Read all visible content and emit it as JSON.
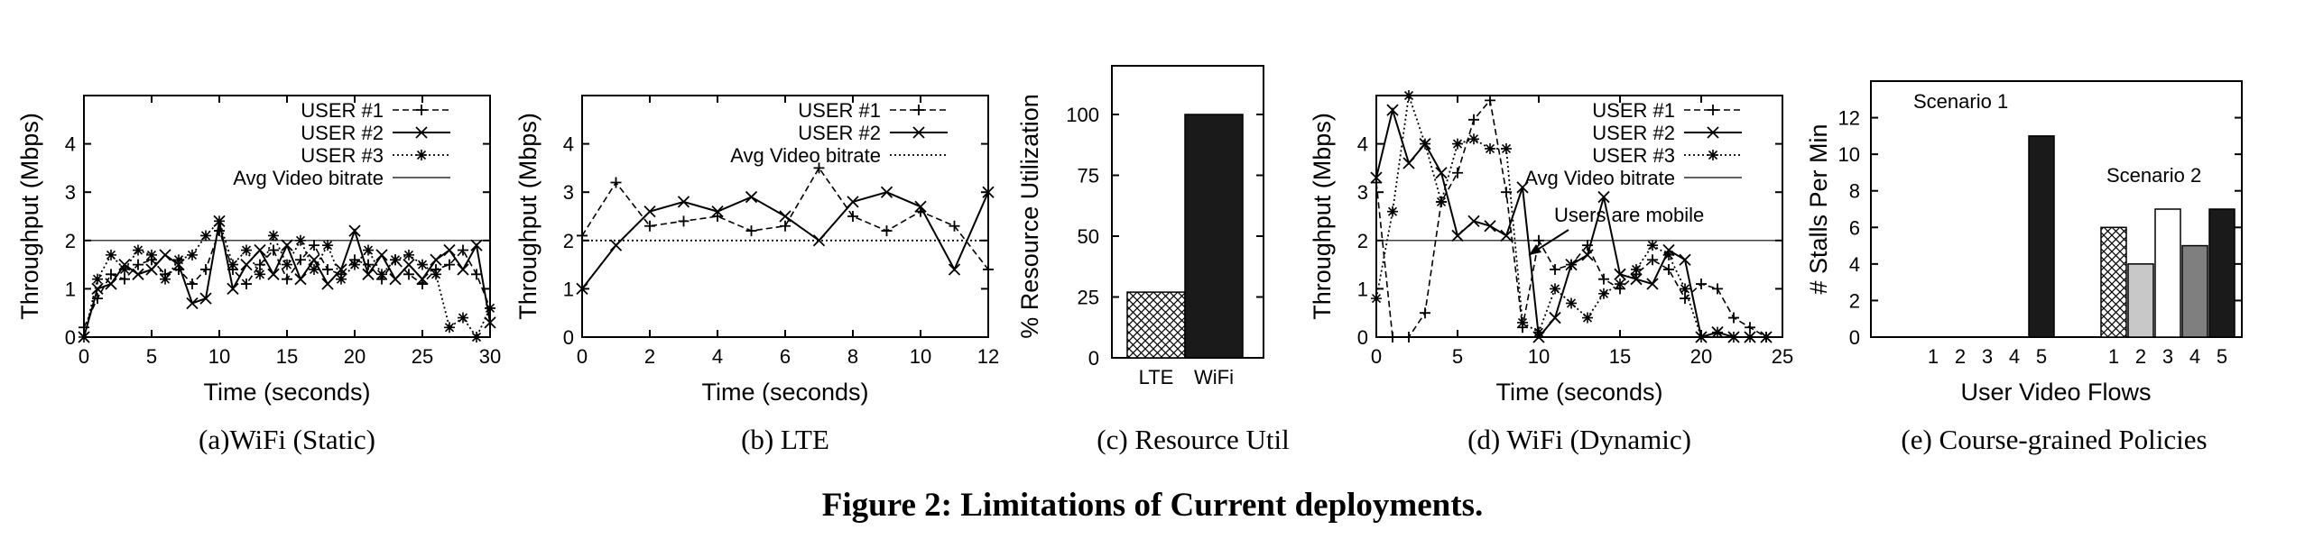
{
  "figure_caption": "Figure 2: Limitations of Current deployments.",
  "chart_data": [
    {
      "type": "line",
      "panel_caption": "(a)WiFi (Static)",
      "xlabel": "Time (seconds)",
      "ylabel": "Throughput (Mbps)",
      "xlim": [
        0,
        30
      ],
      "ylim": [
        0,
        5
      ],
      "xticks": [
        "0",
        "5",
        "10",
        "15",
        "20",
        "25",
        "30"
      ],
      "yticks": [
        "0",
        "1",
        "2",
        "3",
        "4"
      ],
      "legend_position": "top-right",
      "series": [
        {
          "name": "USER #1",
          "style": "dashed",
          "marker": "plus",
          "x": [
            0,
            1,
            2,
            3,
            4,
            5,
            6,
            7,
            8,
            9,
            10,
            11,
            12,
            13,
            14,
            15,
            16,
            17,
            18,
            19,
            20,
            21,
            22,
            23,
            24,
            25,
            26,
            27,
            28,
            29,
            30
          ],
          "y": [
            0.2,
            0.8,
            1.3,
            1.2,
            1.5,
            1.6,
            1.3,
            1.4,
            1.1,
            1.4,
            2.2,
            1.4,
            1.1,
            1.5,
            1.8,
            1.2,
            1.6,
            1.9,
            1.4,
            1.3,
            1.6,
            1.5,
            1.2,
            1.6,
            1.3,
            1.1,
            1.4,
            1.5,
            1.8,
            1.3,
            0.6
          ]
        },
        {
          "name": "USER #2",
          "style": "solid",
          "marker": "x",
          "x": [
            0,
            1,
            2,
            3,
            4,
            5,
            6,
            7,
            8,
            9,
            10,
            11,
            12,
            13,
            14,
            15,
            16,
            17,
            18,
            19,
            20,
            21,
            22,
            23,
            24,
            25,
            26,
            27,
            28,
            29,
            30
          ],
          "y": [
            0.0,
            1.0,
            1.1,
            1.5,
            1.3,
            1.4,
            1.7,
            1.5,
            0.7,
            0.8,
            2.4,
            1.0,
            1.5,
            1.8,
            1.3,
            1.9,
            1.2,
            1.6,
            1.1,
            1.4,
            2.2,
            1.3,
            1.7,
            1.2,
            1.5,
            1.2,
            1.6,
            1.8,
            1.4,
            1.9,
            0.3
          ]
        },
        {
          "name": "USER #3",
          "style": "dotted",
          "marker": "star",
          "x": [
            0,
            1,
            2,
            3,
            4,
            5,
            6,
            7,
            8,
            9,
            10,
            11,
            12,
            13,
            14,
            15,
            16,
            17,
            18,
            19,
            20,
            21,
            22,
            23,
            24,
            25,
            26,
            27,
            28,
            29,
            30
          ],
          "y": [
            0.0,
            1.2,
            1.7,
            1.4,
            1.8,
            1.7,
            1.2,
            1.6,
            1.7,
            2.1,
            2.4,
            1.5,
            1.8,
            1.3,
            2.1,
            1.5,
            2.0,
            1.4,
            1.9,
            1.2,
            1.5,
            1.8,
            1.3,
            1.6,
            1.7,
            1.5,
            1.3,
            0.2,
            0.4,
            0.0,
            0.6
          ]
        },
        {
          "name": "Avg Video bitrate",
          "style": "solid-thin",
          "marker": "none",
          "x": [
            0,
            30
          ],
          "y": [
            2.0,
            2.0
          ]
        }
      ]
    },
    {
      "type": "line",
      "panel_caption": "(b) LTE",
      "xlabel": "Time (seconds)",
      "ylabel": "Throughput (Mbps)",
      "xlim": [
        0,
        12
      ],
      "ylim": [
        0,
        5
      ],
      "xticks": [
        "0",
        "2",
        "4",
        "6",
        "8",
        "10",
        "12"
      ],
      "yticks": [
        "0",
        "1",
        "2",
        "3",
        "4"
      ],
      "legend_position": "top-right",
      "series": [
        {
          "name": "USER #1",
          "style": "dashed",
          "marker": "plus",
          "x": [
            0,
            1,
            2,
            3,
            4,
            5,
            6,
            7,
            8,
            9,
            10,
            11,
            12
          ],
          "y": [
            2.1,
            3.2,
            2.3,
            2.4,
            2.5,
            2.2,
            2.3,
            3.5,
            2.5,
            2.2,
            2.6,
            2.3,
            1.4
          ]
        },
        {
          "name": "USER #2",
          "style": "solid",
          "marker": "x",
          "x": [
            0,
            1,
            2,
            3,
            4,
            5,
            6,
            7,
            8,
            9,
            10,
            11,
            12
          ],
          "y": [
            1.0,
            1.9,
            2.6,
            2.8,
            2.6,
            2.9,
            2.5,
            2.0,
            2.8,
            3.0,
            2.7,
            1.4,
            3.0
          ]
        },
        {
          "name": "Avg Video bitrate",
          "style": "dotted",
          "marker": "none",
          "x": [
            0,
            12
          ],
          "y": [
            2.0,
            2.0
          ]
        }
      ]
    },
    {
      "type": "bar",
      "panel_caption": "(c) Resource Util",
      "xlabel": "",
      "ylabel": "% Resource Utilization",
      "ylim": [
        0,
        120
      ],
      "yticks": [
        "0",
        "25",
        "50",
        "75",
        "100"
      ],
      "categories": [
        "LTE",
        "WiFi"
      ],
      "values": [
        27,
        100
      ],
      "fills": [
        "crosshatch",
        "#1a1a1a"
      ]
    },
    {
      "type": "line",
      "panel_caption": "(d) WiFi (Dynamic)",
      "xlabel": "Time (seconds)",
      "ylabel": "Throughput (Mbps)",
      "xlim": [
        0,
        25
      ],
      "ylim": [
        0,
        5
      ],
      "xticks": [
        "0",
        "5",
        "10",
        "15",
        "20",
        "25"
      ],
      "yticks": [
        "0",
        "1",
        "2",
        "3",
        "4"
      ],
      "legend_position": "top-right",
      "annotation": "Users are mobile",
      "series": [
        {
          "name": "USER #1",
          "style": "dashed",
          "marker": "plus",
          "x": [
            0,
            1,
            2,
            3,
            4,
            5,
            6,
            7,
            8,
            9,
            10,
            11,
            12,
            13,
            14,
            15,
            16,
            17,
            18,
            19,
            20,
            21,
            22,
            23,
            24
          ],
          "y": [
            3.2,
            0.0,
            0.0,
            0.5,
            2.8,
            3.4,
            4.5,
            4.9,
            3.0,
            0.2,
            2.0,
            1.4,
            1.5,
            1.9,
            1.2,
            1.0,
            1.3,
            1.6,
            1.4,
            0.8,
            1.1,
            1.0,
            0.4,
            0.2,
            0.0
          ]
        },
        {
          "name": "USER #2",
          "style": "solid",
          "marker": "x",
          "x": [
            0,
            1,
            2,
            3,
            4,
            5,
            6,
            7,
            8,
            9,
            10,
            11,
            12,
            13,
            14,
            15,
            16,
            17,
            18,
            19,
            20,
            21,
            22,
            23,
            24
          ],
          "y": [
            3.3,
            4.7,
            3.6,
            4.0,
            3.4,
            2.1,
            2.4,
            2.3,
            2.1,
            3.1,
            0.0,
            0.4,
            1.5,
            1.7,
            2.9,
            1.3,
            1.2,
            1.1,
            1.8,
            1.6,
            0.0,
            0.1,
            0.0,
            0.0,
            0.0
          ]
        },
        {
          "name": "USER #3",
          "style": "dotted",
          "marker": "star",
          "x": [
            0,
            1,
            2,
            3,
            4,
            5,
            6,
            7,
            8,
            9,
            10,
            11,
            12,
            13,
            14,
            15,
            16,
            17,
            18,
            19,
            20,
            21,
            22,
            23,
            24
          ],
          "y": [
            0.8,
            2.6,
            5.0,
            4.0,
            2.8,
            4.0,
            4.1,
            3.9,
            3.9,
            0.3,
            0.1,
            1.0,
            0.7,
            0.4,
            0.9,
            1.1,
            1.4,
            1.9,
            1.7,
            1.0,
            0.0,
            0.1,
            0.0,
            0.0,
            0.0
          ]
        },
        {
          "name": "Avg Video bitrate",
          "style": "solid-thin",
          "marker": "none",
          "x": [
            0,
            25
          ],
          "y": [
            2.0,
            2.0
          ]
        }
      ]
    },
    {
      "type": "bar",
      "panel_caption": "(e) Course-grained Policies",
      "xlabel": "User Video Flows",
      "ylabel": "# Stalls Per Min",
      "ylim": [
        0,
        14
      ],
      "yticks": [
        "0",
        "2",
        "4",
        "6",
        "8",
        "10",
        "12"
      ],
      "groups": [
        {
          "name": "Scenario 1",
          "categories": [
            "1",
            "2",
            "3",
            "4",
            "5"
          ],
          "values": [
            0,
            0,
            0,
            0,
            11
          ]
        },
        {
          "name": "Scenario 2",
          "categories": [
            "1",
            "2",
            "3",
            "4",
            "5"
          ],
          "values": [
            6,
            4,
            7,
            5,
            7
          ]
        }
      ],
      "fills": [
        "crosshatch",
        "#c8c8c8",
        "#ffffff",
        "#7f7f7f",
        "#1a1a1a"
      ]
    }
  ]
}
